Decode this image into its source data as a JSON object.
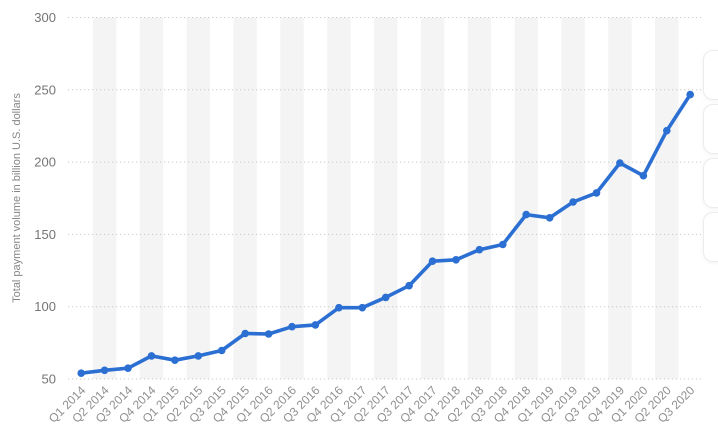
{
  "chart_data": {
    "type": "line",
    "title": "",
    "xlabel": "",
    "ylabel": "Total payment volume in billion U.S. dollars",
    "categories": [
      "Q1 2014",
      "Q2 2014",
      "Q3 2014",
      "Q4 2014",
      "Q1 2015",
      "Q2 2015",
      "Q3 2015",
      "Q4 2015",
      "Q1 2016",
      "Q2 2016",
      "Q3 2016",
      "Q4 2016",
      "Q1 2017",
      "Q2 2017",
      "Q3 2017",
      "Q4 2017",
      "Q1 2018",
      "Q2 2018",
      "Q3 2018",
      "Q4 2018",
      "Q1 2019",
      "Q2 2019",
      "Q3 2019",
      "Q4 2019",
      "Q1 2020",
      "Q2 2020",
      "Q3 2020"
    ],
    "series": [
      {
        "name": "Total payment volume",
        "values": [
          54.0,
          56.0,
          57.5,
          66.0,
          63.0,
          66.0,
          69.7,
          81.5,
          81.1,
          86.2,
          87.4,
          99.3,
          99.3,
          106.4,
          114.5,
          131.5,
          132.4,
          139.4,
          143.0,
          163.7,
          161.5,
          172.4,
          178.7,
          199.4,
          190.6,
          221.7,
          246.7
        ]
      }
    ],
    "ylim": [
      50,
      300
    ],
    "yticks": [
      50,
      100,
      150,
      200,
      250,
      300
    ],
    "grid": "dotted horizontal gridlines at each y tick",
    "plot_bands": "alternating vertical light-gray bands per quarter (Q2 2014, Q4 2014, ... shaded)",
    "legend": "none",
    "marker": "circle",
    "x_tick_rotation": -45
  },
  "colors": {
    "line": "#2C6FD3",
    "marker": "#2C6FD3",
    "band": "#F4F4F4",
    "gridline": "#C9C9C9",
    "y_tick_label": "#757575",
    "x_tick_label": "#8F8F8F",
    "axis_title": "#878787",
    "background": "#FFFFFF",
    "toolbar_button_border": "#ECECEC"
  },
  "side_toolbar": {
    "button_count": 4
  }
}
